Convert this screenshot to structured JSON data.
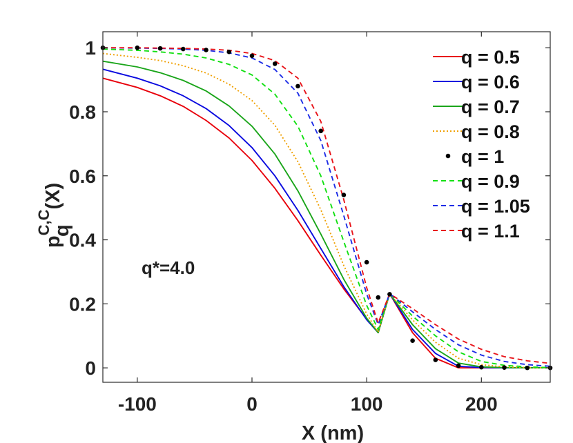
{
  "chart_data": {
    "type": "line",
    "title": "",
    "xlabel": "X (nm)",
    "ylabel": {
      "base": "p",
      "sup": "C,C",
      "sub": "q",
      "suffix": "(X)"
    },
    "xlim": [
      -130,
      260
    ],
    "ylim": [
      -0.045,
      1.05
    ],
    "xticks": [
      -100,
      0,
      100,
      200
    ],
    "yticks": [
      0,
      0.2,
      0.4,
      0.6,
      0.8,
      1
    ],
    "xtick_labels": [
      "-100",
      "0",
      "100",
      "200"
    ],
    "ytick_labels": [
      "0",
      "0.2",
      "0.4",
      "0.6",
      "0.8",
      "1"
    ],
    "grid": false,
    "legend_position": "top-right",
    "annotation": "q*=4.0",
    "x": [
      -130,
      -100,
      -80,
      -60,
      -40,
      -20,
      0,
      20,
      40,
      60,
      80,
      100,
      110,
      120,
      140,
      160,
      180,
      200,
      220,
      240,
      260
    ],
    "series": [
      {
        "name": "q = 0.5",
        "color": "#e8000b",
        "style": "solid",
        "values": [
          0.905,
          0.876,
          0.85,
          0.817,
          0.773,
          0.718,
          0.648,
          0.561,
          0.46,
          0.352,
          0.247,
          0.152,
          0.111,
          0.232,
          0.11,
          0.03,
          0.0,
          0.0,
          0.0,
          0.0,
          0.0
        ]
      },
      {
        "name": "q = 0.6",
        "color": "#0a0adf",
        "style": "solid",
        "values": [
          0.933,
          0.905,
          0.881,
          0.85,
          0.81,
          0.757,
          0.688,
          0.6,
          0.492,
          0.373,
          0.254,
          0.15,
          0.11,
          0.232,
          0.12,
          0.045,
          0.005,
          0.001,
          0.0,
          0.0,
          0.0
        ]
      },
      {
        "name": "q = 0.7",
        "color": "#1aa51a",
        "style": "solid",
        "values": [
          0.958,
          0.94,
          0.922,
          0.898,
          0.865,
          0.818,
          0.755,
          0.668,
          0.553,
          0.418,
          0.277,
          0.155,
          0.11,
          0.232,
          0.135,
          0.06,
          0.015,
          0.003,
          0.001,
          0.0,
          0.0
        ]
      },
      {
        "name": "q = 0.8",
        "color": "#f0a000",
        "style": "dotted",
        "values": [
          0.982,
          0.97,
          0.96,
          0.944,
          0.921,
          0.886,
          0.835,
          0.758,
          0.644,
          0.494,
          0.32,
          0.168,
          0.112,
          0.232,
          0.15,
          0.08,
          0.03,
          0.01,
          0.003,
          0.001,
          0.0
        ]
      },
      {
        "name": "q = 1",
        "color": "#000000",
        "style": "dots",
        "values": [
          1.0,
          1.0,
          0.998,
          0.996,
          0.993,
          0.987,
          0.975,
          0.95,
          0.88,
          0.74,
          0.54,
          0.33,
          0.22,
          0.23,
          0.085,
          0.025,
          0.007,
          0.002,
          0.001,
          0.0,
          0.0
        ]
      },
      {
        "name": "q = 0.9",
        "color": "#12e012",
        "style": "dashed",
        "values": [
          0.996,
          0.992,
          0.987,
          0.98,
          0.968,
          0.948,
          0.915,
          0.855,
          0.755,
          0.6,
          0.395,
          0.195,
          0.12,
          0.232,
          0.162,
          0.1,
          0.05,
          0.02,
          0.008,
          0.003,
          0.001
        ]
      },
      {
        "name": "q = 1.05",
        "color": "#1c2ce6",
        "style": "dashed",
        "values": [
          1.0,
          0.999,
          0.998,
          0.996,
          0.992,
          0.984,
          0.968,
          0.932,
          0.858,
          0.71,
          0.476,
          0.23,
          0.135,
          0.232,
          0.175,
          0.12,
          0.072,
          0.04,
          0.02,
          0.01,
          0.005
        ]
      },
      {
        "name": "q = 1.1",
        "color": "#e8141a",
        "style": "dashed",
        "values": [
          1.0,
          1.0,
          0.999,
          0.998,
          0.996,
          0.992,
          0.982,
          0.96,
          0.905,
          0.77,
          0.526,
          0.25,
          0.14,
          0.232,
          0.185,
          0.135,
          0.09,
          0.058,
          0.035,
          0.022,
          0.014
        ]
      }
    ]
  }
}
